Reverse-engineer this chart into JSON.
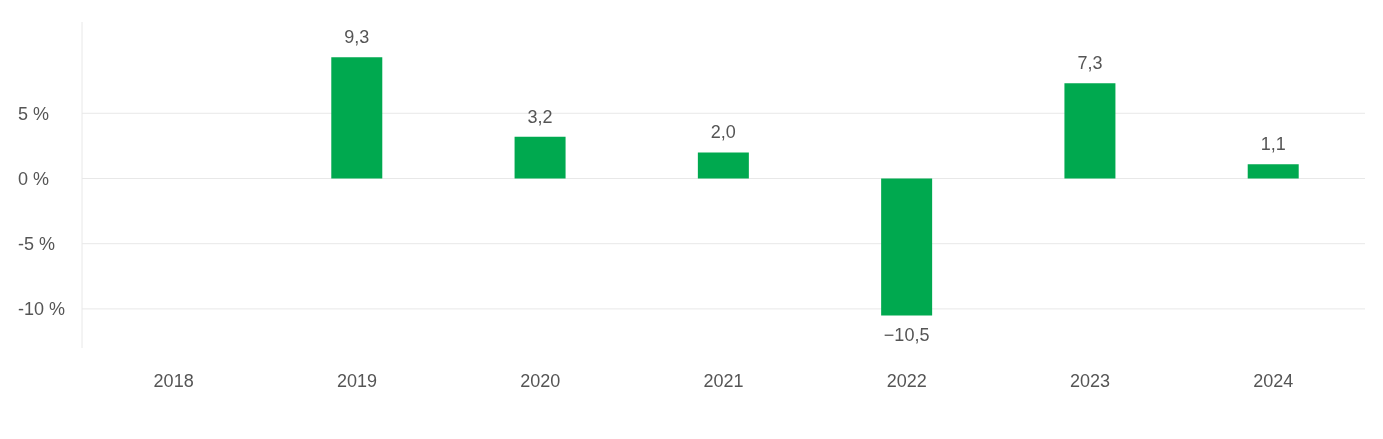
{
  "chart_data": {
    "type": "bar",
    "categories": [
      "2018",
      "2019",
      "2020",
      "2021",
      "2022",
      "2023",
      "2024"
    ],
    "series": [
      {
        "color": "#00a94f",
        "values": [
          null,
          9.3,
          3.2,
          2.0,
          -10.5,
          7.3,
          1.1
        ],
        "value_labels": [
          null,
          "9,3",
          "3,2",
          "2,0",
          "−10,5",
          "7,3",
          "1,1"
        ]
      }
    ],
    "ylim": [
      -13,
      12
    ],
    "yticks": [
      {
        "value": -10,
        "label": "-10 %"
      },
      {
        "value": -5,
        "label": "-5 %"
      },
      {
        "value": 0,
        "label": "0 %"
      },
      {
        "value": 5,
        "label": "5 %"
      }
    ],
    "grid": "y",
    "legend": false
  }
}
